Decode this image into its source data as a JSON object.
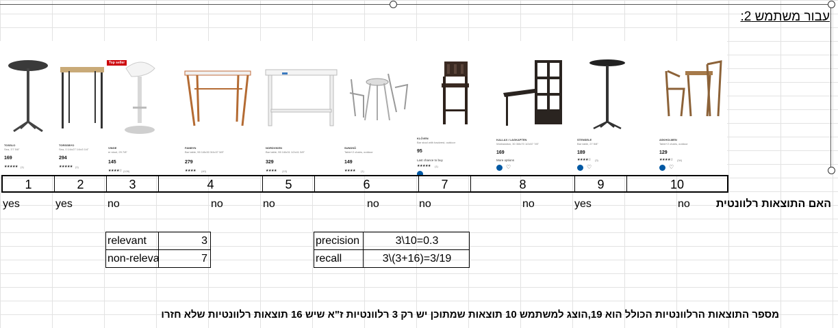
{
  "header": {
    "title": "עבור משתמש 2:"
  },
  "products": [
    {
      "name": "TOSSLO",
      "desc": "Sea, 3'7 5/8\"",
      "price": "169",
      "stars": "★★★★★",
      "count": "(1)"
    },
    {
      "name": "TORSSBYO",
      "desc": "Sea, 0 1/4x27 1/4x3 1/4\"",
      "price": "294",
      "stars": "★★★★★",
      "count": "(1)"
    },
    {
      "name": "VINGE",
      "desc": "er stool, 29 7/8\"",
      "price": "145",
      "stars": "★★★★☆",
      "count": "(126)",
      "badge": "Top seller"
    },
    {
      "name": "FANBYN",
      "desc": "Bar table, 55 1/8x30 3/4x37 3/8\"",
      "price": "279",
      "stars": "★★★★",
      "count": "(40)"
    },
    {
      "name": "NORDVIKEN",
      "desc": "Bar table, 55 1/8x31 1/2x41 3/8\"",
      "price": "329",
      "stars": "★★★★",
      "count": "(13)"
    },
    {
      "name": "SUNDSÖ",
      "desc": "Table+2 chairs, outdoor",
      "price": "149",
      "stars": "★★★★",
      "count": "(1)"
    },
    {
      "name": "KLÖVEN",
      "desc": "Bar stool with backrest, outdoor",
      "price": "95",
      "stars": "★★★★★",
      "count": "(1)",
      "extra": "Last chance to buy"
    },
    {
      "name": "KALLAX / LAGKAPTEN",
      "desc": "Workstation, 30 3/8x70 1/2x57 7/8\"",
      "price": "169",
      "stars": "",
      "count": "",
      "extra": "More options"
    },
    {
      "name": "STENSELE",
      "desc": "Bar table, 27 5/8\"",
      "price": "189",
      "stars": "★★★★☆",
      "count": "(3)"
    },
    {
      "name": "ASKHOLMEN",
      "desc": "Table+2 chairs, outdoor",
      "price": "129",
      "stars": "★★★★☆",
      "count": "(34)"
    }
  ],
  "numbers": [
    "1",
    "2",
    "3",
    "4",
    "5",
    "6",
    "7",
    "8",
    "9",
    "10"
  ],
  "relevance": {
    "label": "האם התוצאות רלוונטית",
    "values": [
      "yes",
      "yes",
      "no",
      "no",
      "no",
      "no",
      "no",
      "no",
      "yes",
      "no"
    ]
  },
  "stats": {
    "relevant_label": "relevant",
    "relevant_value": "3",
    "nonrelevant_label": "non-releva",
    "nonrelevant_value": "7",
    "precision_label": "precision",
    "precision_value": "3\\10=0.3",
    "recall_label": "recall",
    "recall_value": "3\\(3+16)=3/19"
  },
  "footer": {
    "note": "מספר התוצאות הרלוונטיות הכולל הוא 19,הוצג למשתמש 10 תוצאות שמתוכן יש רק 3 רלוונטיות ז\"א שיש 16 תוצאות רלוונטיות שלא חזרו"
  },
  "colors": {
    "ikea_blue": "#0058a3",
    "badge_red": "#cc0008",
    "grid": "#e2e2e2"
  }
}
